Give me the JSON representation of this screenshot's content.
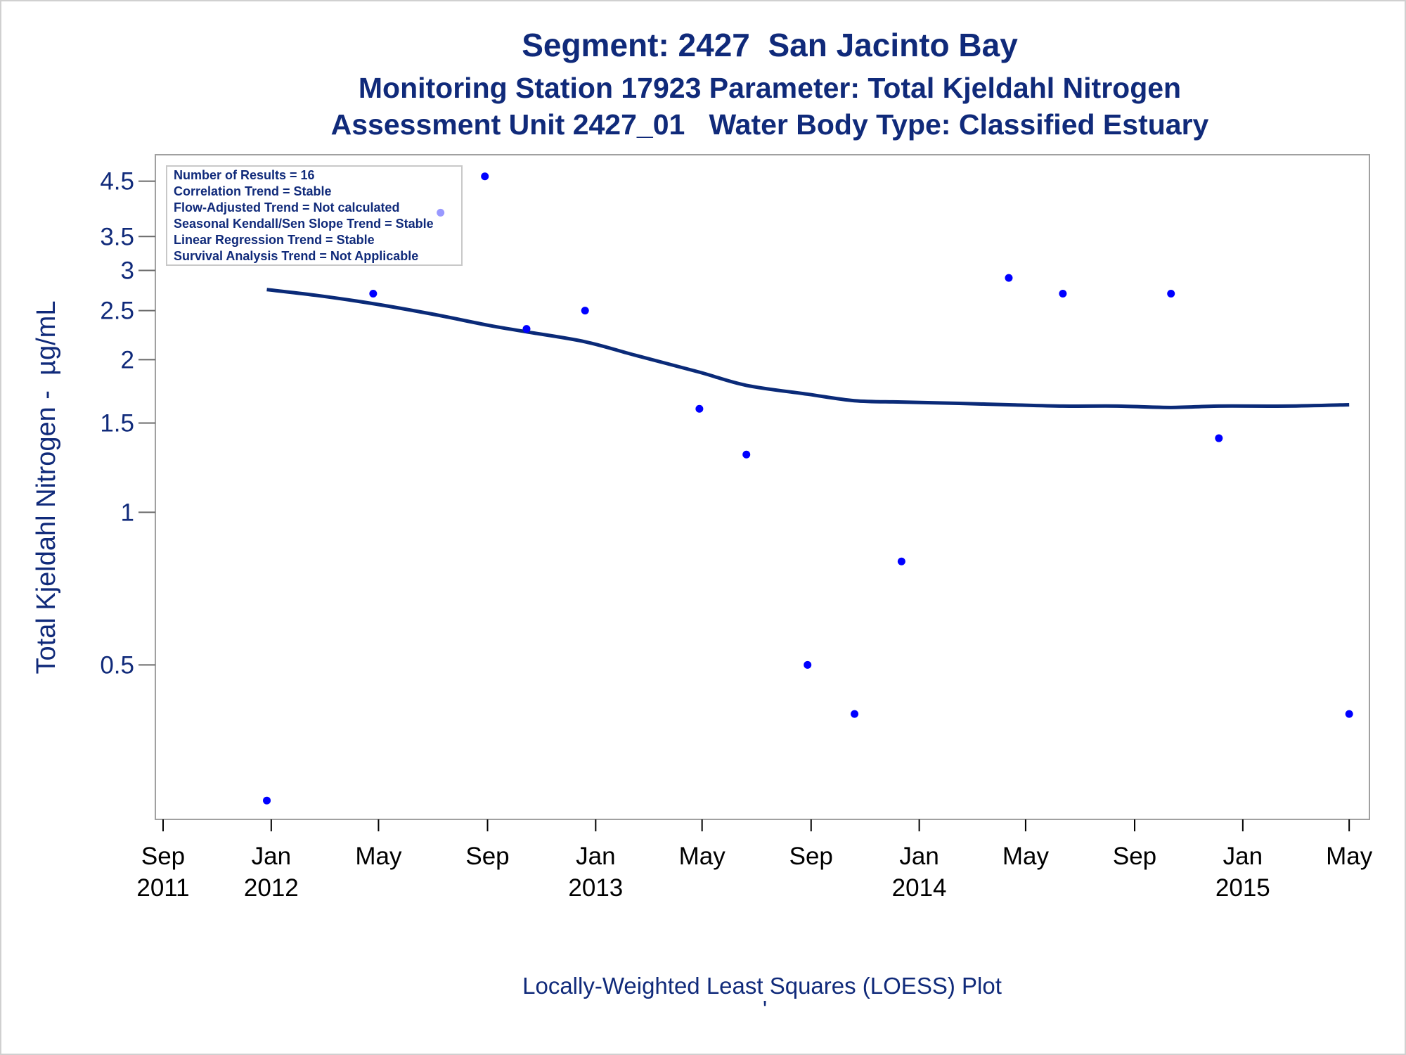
{
  "titles": {
    "line1": "Segment: 2427  San Jacinto Bay",
    "line2": "Monitoring Station 17923 Parameter: Total Kjeldahl Nitrogen",
    "line3": "Assessment Unit 2427_01   Water Body Type: Classified Estuary"
  },
  "stats_box": [
    "Number of Results = 16",
    "Correlation Trend = Stable",
    "Flow-Adjusted Trend = Not calculated",
    "Seasonal Kendall/Sen Slope Trend = Stable",
    "Linear Regression Trend = Stable",
    "Survival Analysis Trend = Not Applicable"
  ],
  "footnote": "Locally-Weighted Least Squares (LOESS) Plot",
  "footnote_mark": "'",
  "colors": {
    "text": "#102a7a",
    "points": "#0000ff",
    "loess": "#0a2a78",
    "frame": "#a0a0a0"
  },
  "chart_data": {
    "type": "scatter",
    "ylabel": "Total Kjeldahl Nitrogen -  µg/mL",
    "xlabel": "",
    "yscale": "log",
    "ylim": [
      0.26,
      4.7
    ],
    "xlim": [
      "2011-09-01",
      "2015-05-08"
    ],
    "yticks": [
      0.5,
      1,
      1.5,
      2,
      2.5,
      3,
      3.5,
      4.5
    ],
    "ytick_labels": [
      "0.5",
      "1",
      "1.5",
      "2",
      "2.5",
      "3",
      "3.5",
      "4.5"
    ],
    "xticks": [
      {
        "date": "2011-09-01",
        "month": "Sep",
        "year": "2011"
      },
      {
        "date": "2012-01-01",
        "month": "Jan",
        "year": "2012"
      },
      {
        "date": "2012-05-01",
        "month": "May",
        "year": ""
      },
      {
        "date": "2012-09-01",
        "month": "Sep",
        "year": ""
      },
      {
        "date": "2013-01-01",
        "month": "Jan",
        "year": "2013"
      },
      {
        "date": "2013-05-01",
        "month": "May",
        "year": ""
      },
      {
        "date": "2013-09-01",
        "month": "Sep",
        "year": ""
      },
      {
        "date": "2014-01-01",
        "month": "Jan",
        "year": "2014"
      },
      {
        "date": "2014-05-01",
        "month": "May",
        "year": ""
      },
      {
        "date": "2014-09-01",
        "month": "Sep",
        "year": ""
      },
      {
        "date": "2015-01-01",
        "month": "Jan",
        "year": "2015"
      },
      {
        "date": "2015-05-01",
        "month": "May",
        "year": ""
      }
    ],
    "points": [
      {
        "x": "2011-12-27",
        "y": 0.27
      },
      {
        "x": "2012-04-25",
        "y": 2.7
      },
      {
        "x": "2012-07-10",
        "y": 3.9
      },
      {
        "x": "2012-08-29",
        "y": 4.6
      },
      {
        "x": "2012-10-15",
        "y": 2.3
      },
      {
        "x": "2012-12-20",
        "y": 2.5
      },
      {
        "x": "2013-04-28",
        "y": 1.6
      },
      {
        "x": "2013-06-20",
        "y": 1.3
      },
      {
        "x": "2013-08-28",
        "y": 0.5
      },
      {
        "x": "2013-10-20",
        "y": 0.4
      },
      {
        "x": "2013-12-12",
        "y": 0.8
      },
      {
        "x": "2014-04-12",
        "y": 2.9
      },
      {
        "x": "2014-06-12",
        "y": 2.7
      },
      {
        "x": "2014-10-12",
        "y": 2.7
      },
      {
        "x": "2014-12-05",
        "y": 1.4
      },
      {
        "x": "2015-05-01",
        "y": 0.4
      }
    ],
    "loess": [
      {
        "x": "2011-12-27",
        "y": 2.75
      },
      {
        "x": "2012-02-20",
        "y": 2.68
      },
      {
        "x": "2012-04-25",
        "y": 2.58
      },
      {
        "x": "2012-07-01",
        "y": 2.46
      },
      {
        "x": "2012-09-01",
        "y": 2.34
      },
      {
        "x": "2012-10-15",
        "y": 2.27
      },
      {
        "x": "2012-12-20",
        "y": 2.17
      },
      {
        "x": "2013-02-15",
        "y": 2.04
      },
      {
        "x": "2013-04-28",
        "y": 1.89
      },
      {
        "x": "2013-06-20",
        "y": 1.78
      },
      {
        "x": "2013-08-28",
        "y": 1.71
      },
      {
        "x": "2013-10-20",
        "y": 1.66
      },
      {
        "x": "2013-12-12",
        "y": 1.65
      },
      {
        "x": "2014-02-15",
        "y": 1.64
      },
      {
        "x": "2014-04-12",
        "y": 1.63
      },
      {
        "x": "2014-06-12",
        "y": 1.62
      },
      {
        "x": "2014-08-12",
        "y": 1.62
      },
      {
        "x": "2014-10-12",
        "y": 1.61
      },
      {
        "x": "2014-12-05",
        "y": 1.62
      },
      {
        "x": "2015-02-20",
        "y": 1.62
      },
      {
        "x": "2015-05-01",
        "y": 1.63
      }
    ]
  }
}
